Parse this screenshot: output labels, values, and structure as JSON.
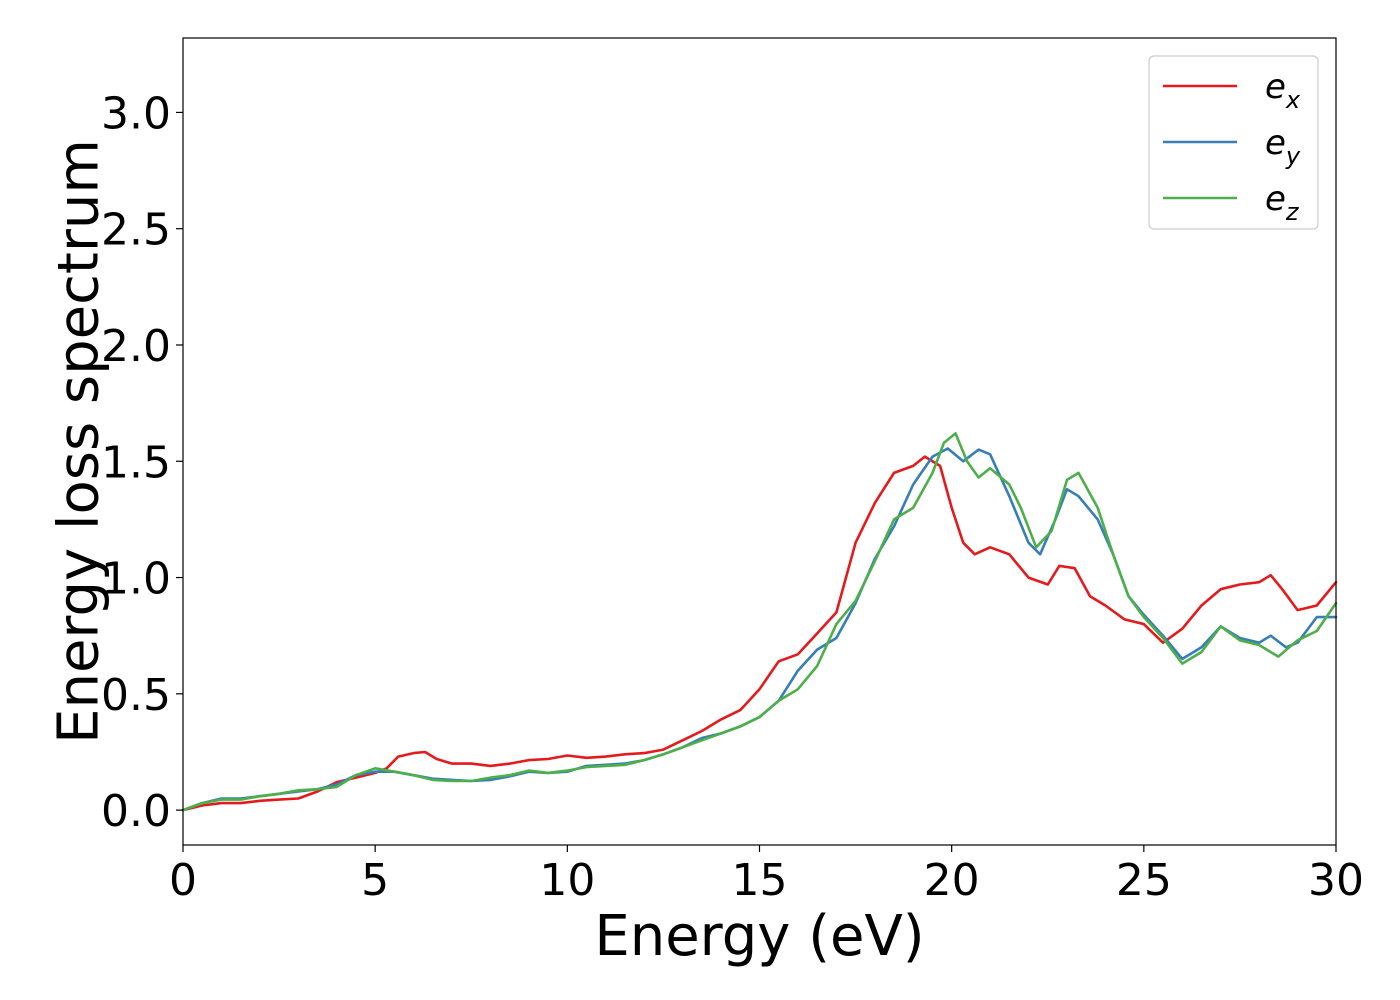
{
  "chart_data": {
    "type": "line",
    "title": "",
    "xlabel": "Energy (eV)",
    "ylabel": "Energy loss spectrum",
    "xlim": [
      0,
      30
    ],
    "ylim": [
      -0.15,
      3.32
    ],
    "x_ticks": [
      "0",
      "5",
      "10",
      "15",
      "20",
      "25",
      "30"
    ],
    "y_ticks": [
      "0.0",
      "0.5",
      "1.0",
      "1.5",
      "2.0",
      "2.5",
      "3.0"
    ],
    "grid": false,
    "legend_position": "top-right",
    "colors": {
      "e_x": "#e41a1c",
      "e_y": "#377eb8",
      "e_z": "#4daf4a"
    },
    "series": [
      {
        "name": "e_x",
        "legend_base": "e",
        "legend_sub": "x",
        "color": "#e41a1c",
        "points": [
          [
            0,
            0
          ],
          [
            0.5,
            0.02
          ],
          [
            1,
            0.03
          ],
          [
            1.5,
            0.03
          ],
          [
            2,
            0.04
          ],
          [
            2.5,
            0.045
          ],
          [
            3,
            0.05
          ],
          [
            3.5,
            0.08
          ],
          [
            4,
            0.12
          ],
          [
            4.5,
            0.14
          ],
          [
            5,
            0.16
          ],
          [
            5.3,
            0.18
          ],
          [
            5.6,
            0.23
          ],
          [
            6,
            0.245
          ],
          [
            6.3,
            0.25
          ],
          [
            6.6,
            0.22
          ],
          [
            7,
            0.2
          ],
          [
            7.5,
            0.2
          ],
          [
            8,
            0.19
          ],
          [
            8.5,
            0.2
          ],
          [
            9,
            0.215
          ],
          [
            9.5,
            0.22
          ],
          [
            10,
            0.235
          ],
          [
            10.5,
            0.225
          ],
          [
            11,
            0.23
          ],
          [
            11.5,
            0.24
          ],
          [
            12,
            0.245
          ],
          [
            12.5,
            0.26
          ],
          [
            13,
            0.3
          ],
          [
            13.5,
            0.34
          ],
          [
            14,
            0.39
          ],
          [
            14.5,
            0.43
          ],
          [
            15,
            0.52
          ],
          [
            15.5,
            0.64
          ],
          [
            16,
            0.67
          ],
          [
            16.5,
            0.76
          ],
          [
            17,
            0.85
          ],
          [
            17.5,
            1.15
          ],
          [
            18,
            1.32
          ],
          [
            18.5,
            1.45
          ],
          [
            19,
            1.48
          ],
          [
            19.3,
            1.52
          ],
          [
            19.7,
            1.48
          ],
          [
            20,
            1.3
          ],
          [
            20.3,
            1.15
          ],
          [
            20.6,
            1.1
          ],
          [
            21,
            1.13
          ],
          [
            21.5,
            1.1
          ],
          [
            22,
            1.0
          ],
          [
            22.5,
            0.97
          ],
          [
            22.8,
            1.05
          ],
          [
            23.2,
            1.04
          ],
          [
            23.6,
            0.92
          ],
          [
            24,
            0.88
          ],
          [
            24.5,
            0.82
          ],
          [
            25,
            0.8
          ],
          [
            25.5,
            0.72
          ],
          [
            26,
            0.78
          ],
          [
            26.5,
            0.88
          ],
          [
            27,
            0.95
          ],
          [
            27.5,
            0.97
          ],
          [
            28,
            0.98
          ],
          [
            28.3,
            1.01
          ],
          [
            28.6,
            0.95
          ],
          [
            29,
            0.86
          ],
          [
            29.5,
            0.88
          ],
          [
            30,
            0.98
          ]
        ]
      },
      {
        "name": "e_y",
        "legend_base": "e",
        "legend_sub": "y",
        "color": "#377eb8",
        "points": [
          [
            0,
            0
          ],
          [
            0.5,
            0.03
          ],
          [
            1,
            0.05
          ],
          [
            1.5,
            0.05
          ],
          [
            2,
            0.06
          ],
          [
            2.5,
            0.07
          ],
          [
            3,
            0.08
          ],
          [
            3.5,
            0.09
          ],
          [
            4,
            0.11
          ],
          [
            4.5,
            0.15
          ],
          [
            5,
            0.165
          ],
          [
            5.5,
            0.165
          ],
          [
            6,
            0.15
          ],
          [
            6.5,
            0.135
          ],
          [
            7,
            0.13
          ],
          [
            7.5,
            0.125
          ],
          [
            8,
            0.13
          ],
          [
            8.5,
            0.145
          ],
          [
            9,
            0.165
          ],
          [
            9.5,
            0.16
          ],
          [
            10,
            0.165
          ],
          [
            10.5,
            0.19
          ],
          [
            11,
            0.195
          ],
          [
            11.5,
            0.2
          ],
          [
            12,
            0.215
          ],
          [
            12.5,
            0.24
          ],
          [
            13,
            0.27
          ],
          [
            13.5,
            0.31
          ],
          [
            14,
            0.33
          ],
          [
            14.5,
            0.36
          ],
          [
            15,
            0.4
          ],
          [
            15.5,
            0.47
          ],
          [
            16,
            0.6
          ],
          [
            16.5,
            0.69
          ],
          [
            17,
            0.74
          ],
          [
            17.5,
            0.89
          ],
          [
            18,
            1.08
          ],
          [
            18.5,
            1.22
          ],
          [
            19,
            1.4
          ],
          [
            19.5,
            1.52
          ],
          [
            19.9,
            1.555
          ],
          [
            20.3,
            1.5
          ],
          [
            20.7,
            1.55
          ],
          [
            21,
            1.53
          ],
          [
            21.5,
            1.35
          ],
          [
            22,
            1.15
          ],
          [
            22.3,
            1.1
          ],
          [
            22.7,
            1.25
          ],
          [
            23,
            1.38
          ],
          [
            23.3,
            1.35
          ],
          [
            23.8,
            1.25
          ],
          [
            24.2,
            1.1
          ],
          [
            24.6,
            0.92
          ],
          [
            25,
            0.84
          ],
          [
            25.5,
            0.75
          ],
          [
            26,
            0.65
          ],
          [
            26.5,
            0.7
          ],
          [
            27,
            0.79
          ],
          [
            27.5,
            0.74
          ],
          [
            28,
            0.72
          ],
          [
            28.3,
            0.75
          ],
          [
            28.7,
            0.7
          ],
          [
            29,
            0.72
          ],
          [
            29.5,
            0.83
          ],
          [
            30,
            0.83
          ]
        ]
      },
      {
        "name": "e_z",
        "legend_base": "e",
        "legend_sub": "z",
        "color": "#4daf4a",
        "points": [
          [
            0,
            0
          ],
          [
            0.5,
            0.03
          ],
          [
            1,
            0.045
          ],
          [
            1.5,
            0.045
          ],
          [
            2,
            0.06
          ],
          [
            2.5,
            0.07
          ],
          [
            3,
            0.085
          ],
          [
            3.5,
            0.09
          ],
          [
            4,
            0.1
          ],
          [
            4.5,
            0.15
          ],
          [
            5,
            0.18
          ],
          [
            5.5,
            0.165
          ],
          [
            6,
            0.15
          ],
          [
            6.5,
            0.13
          ],
          [
            7,
            0.125
          ],
          [
            7.5,
            0.125
          ],
          [
            8,
            0.14
          ],
          [
            8.5,
            0.15
          ],
          [
            9,
            0.17
          ],
          [
            9.5,
            0.16
          ],
          [
            10,
            0.17
          ],
          [
            10.5,
            0.185
          ],
          [
            11,
            0.19
          ],
          [
            11.5,
            0.195
          ],
          [
            12,
            0.215
          ],
          [
            12.5,
            0.24
          ],
          [
            13,
            0.27
          ],
          [
            13.5,
            0.3
          ],
          [
            14,
            0.33
          ],
          [
            14.5,
            0.36
          ],
          [
            15,
            0.4
          ],
          [
            15.5,
            0.47
          ],
          [
            16,
            0.52
          ],
          [
            16.5,
            0.62
          ],
          [
            17,
            0.8
          ],
          [
            17.5,
            0.9
          ],
          [
            18,
            1.07
          ],
          [
            18.5,
            1.25
          ],
          [
            19,
            1.3
          ],
          [
            19.5,
            1.45
          ],
          [
            19.8,
            1.58
          ],
          [
            20.1,
            1.62
          ],
          [
            20.4,
            1.5
          ],
          [
            20.7,
            1.43
          ],
          [
            21,
            1.47
          ],
          [
            21.5,
            1.4
          ],
          [
            21.8,
            1.3
          ],
          [
            22.2,
            1.13
          ],
          [
            22.6,
            1.2
          ],
          [
            23,
            1.42
          ],
          [
            23.3,
            1.45
          ],
          [
            23.8,
            1.3
          ],
          [
            24.2,
            1.1
          ],
          [
            24.6,
            0.92
          ],
          [
            25,
            0.83
          ],
          [
            25.5,
            0.74
          ],
          [
            26,
            0.63
          ],
          [
            26.5,
            0.68
          ],
          [
            27,
            0.79
          ],
          [
            27.5,
            0.73
          ],
          [
            28,
            0.71
          ],
          [
            28.5,
            0.66
          ],
          [
            29,
            0.73
          ],
          [
            29.5,
            0.77
          ],
          [
            30,
            0.89
          ]
        ]
      }
    ]
  }
}
